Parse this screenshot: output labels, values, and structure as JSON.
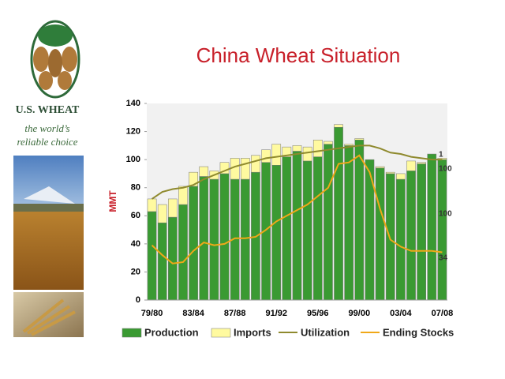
{
  "brand": {
    "name": "U.S. WHEAT",
    "tagline": [
      "the world’s",
      "reliable choice"
    ]
  },
  "chart_data": {
    "type": "bar",
    "stacked": true,
    "title": "China Wheat Situation",
    "ylabel": "MMT",
    "categories": [
      "79/80",
      null,
      null,
      null,
      "83/84",
      null,
      null,
      null,
      "87/88",
      null,
      null,
      null,
      "91/92",
      null,
      null,
      null,
      "95/96",
      null,
      null,
      null,
      "99/00",
      null,
      null,
      null,
      "03/04",
      null,
      null,
      null,
      "07/08"
    ],
    "ylim": [
      0,
      140
    ],
    "yticks": [
      0,
      20,
      40,
      60,
      80,
      100,
      120,
      140
    ],
    "series": [
      {
        "name": "Production",
        "type": "bar",
        "color": "#3a9a32",
        "values": [
          63,
          55,
          59,
          68,
          81,
          88,
          86,
          90,
          86,
          86,
          91,
          98,
          96,
          102,
          106,
          99,
          102,
          111,
          123,
          110,
          114,
          100,
          94,
          90,
          86,
          92,
          97,
          104,
          100
        ]
      },
      {
        "name": "Imports",
        "type": "bar",
        "color": "#fffaa0",
        "values": [
          9,
          13,
          13,
          13,
          10,
          7,
          6,
          8,
          15,
          15,
          12,
          9,
          15,
          7,
          4,
          10,
          12,
          2,
          2,
          1,
          1,
          0,
          1,
          1,
          4,
          7,
          1,
          0,
          1
        ]
      },
      {
        "name": "Utilization",
        "type": "line",
        "color": "#8f8a2e",
        "values": [
          72,
          77,
          79,
          80,
          82,
          86,
          89,
          92,
          95,
          97,
          99,
          101,
          102,
          103,
          104,
          105,
          106,
          107,
          108,
          109,
          110,
          110,
          108,
          105,
          104,
          102,
          101,
          100,
          100
        ]
      },
      {
        "name": "Ending Stocks",
        "type": "line",
        "color": "#f0a818",
        "values": [
          39,
          32,
          26,
          27,
          35,
          41,
          39,
          40,
          44,
          44,
          45,
          50,
          56,
          60,
          64,
          68,
          74,
          80,
          97,
          98,
          103,
          91,
          65,
          43,
          38,
          35,
          35,
          35,
          34
        ]
      }
    ]
  }
}
